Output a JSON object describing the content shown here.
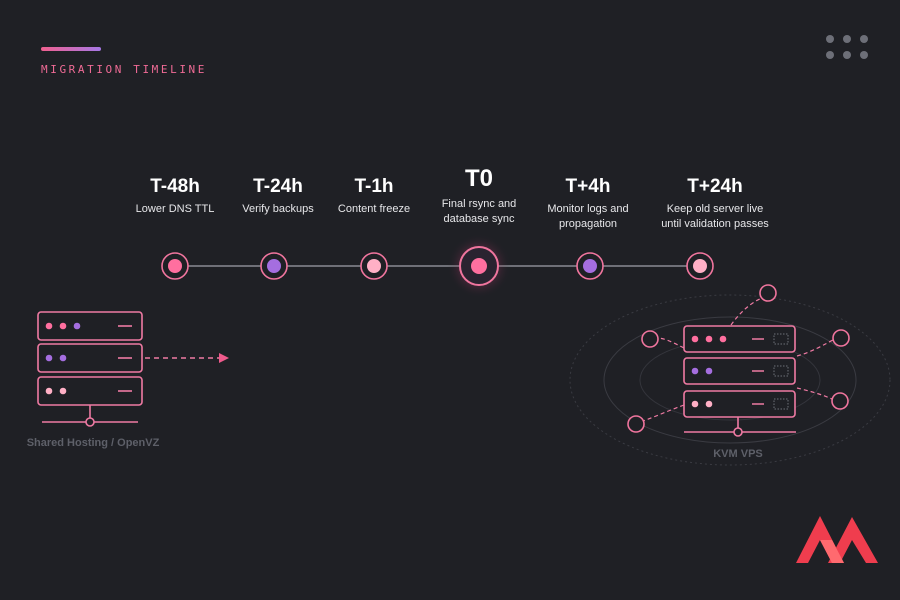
{
  "header": {
    "section_title": "MIGRATION TIMELINE",
    "menu_icon": "more-dots-icon"
  },
  "timeline": {
    "steps": [
      {
        "time": "T-48h",
        "description": "Lower DNS TTL",
        "color": "#ff6f9f"
      },
      {
        "time": "T-24h",
        "description": "Verify backups",
        "color": "#a56ee0"
      },
      {
        "time": "T-1h",
        "description": "Content freeze",
        "color": "#ffb0c6"
      },
      {
        "time": "T0",
        "description": "Final rsync and\ndatabase sync",
        "color": "#ff6f9f",
        "highlighted": true
      },
      {
        "time": "T+4h",
        "description": "Monitor logs and\npropagation",
        "color": "#a56ee0"
      },
      {
        "time": "T+24h",
        "description": "Keep old server live\nuntil validation passes",
        "color": "#ffb0c6"
      }
    ]
  },
  "source_server": {
    "caption": "Shared Hosting / OpenVZ",
    "icon": "server-stack-icon"
  },
  "target_server": {
    "caption": "KVM VPS",
    "icon": "server-stack-icon"
  },
  "brand": {
    "icon": "brand-logo-icon",
    "color": "#ef3d4e"
  },
  "colors": {
    "accent_pink": "#f06b96",
    "accent_purple": "#a678e6",
    "background": "#1f2025",
    "line": "#ef7aa3"
  }
}
